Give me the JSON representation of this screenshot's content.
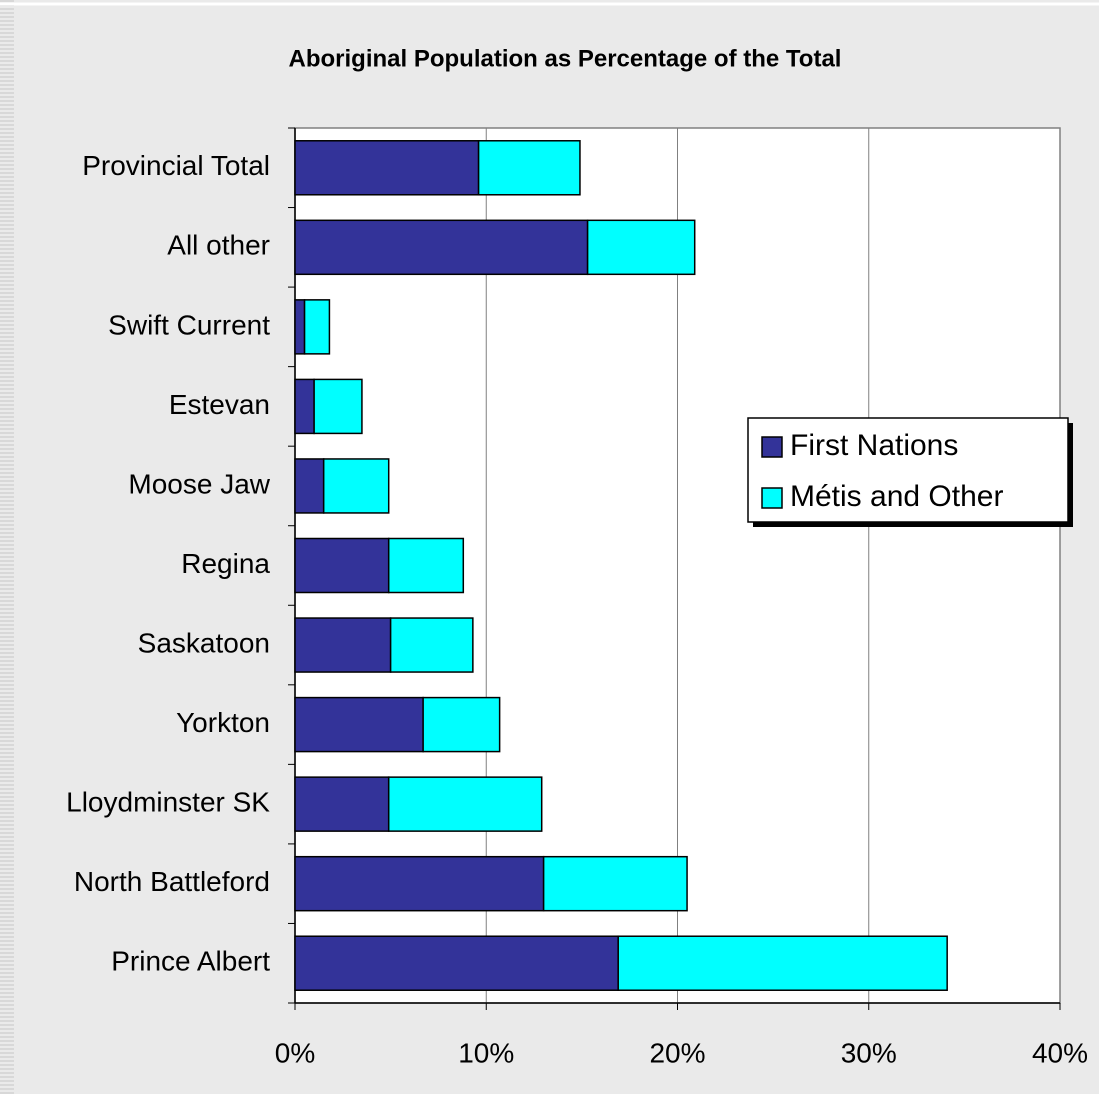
{
  "chart_data": {
    "type": "stacked-bar-horizontal",
    "title": "Aboriginal Population as Percentage of the Total",
    "categories": [
      "Provincial Total",
      "All other",
      "Swift Current",
      "Estevan",
      "Moose Jaw",
      "Regina",
      "Saskatoon",
      "Yorkton",
      "Lloydminster SK",
      "North Battleford",
      "Prince Albert"
    ],
    "series": [
      {
        "name": "First Nations",
        "color": "#333399",
        "values": [
          9.6,
          15.3,
          0.5,
          1.0,
          1.5,
          4.9,
          5.0,
          6.7,
          4.9,
          13.0,
          16.9
        ]
      },
      {
        "name": "Métis and Other",
        "color": "#00ffff",
        "values": [
          5.3,
          5.6,
          1.3,
          2.5,
          3.4,
          3.9,
          4.3,
          4.0,
          8.0,
          7.5,
          17.2
        ]
      }
    ],
    "xlim": [
      0,
      40
    ],
    "xticks": [
      {
        "value": 0,
        "label": "0%"
      },
      {
        "value": 10,
        "label": "10%"
      },
      {
        "value": 20,
        "label": "20%"
      },
      {
        "value": 30,
        "label": "30%"
      },
      {
        "value": 40,
        "label": "40%"
      }
    ],
    "grid": true,
    "legend": "right"
  }
}
